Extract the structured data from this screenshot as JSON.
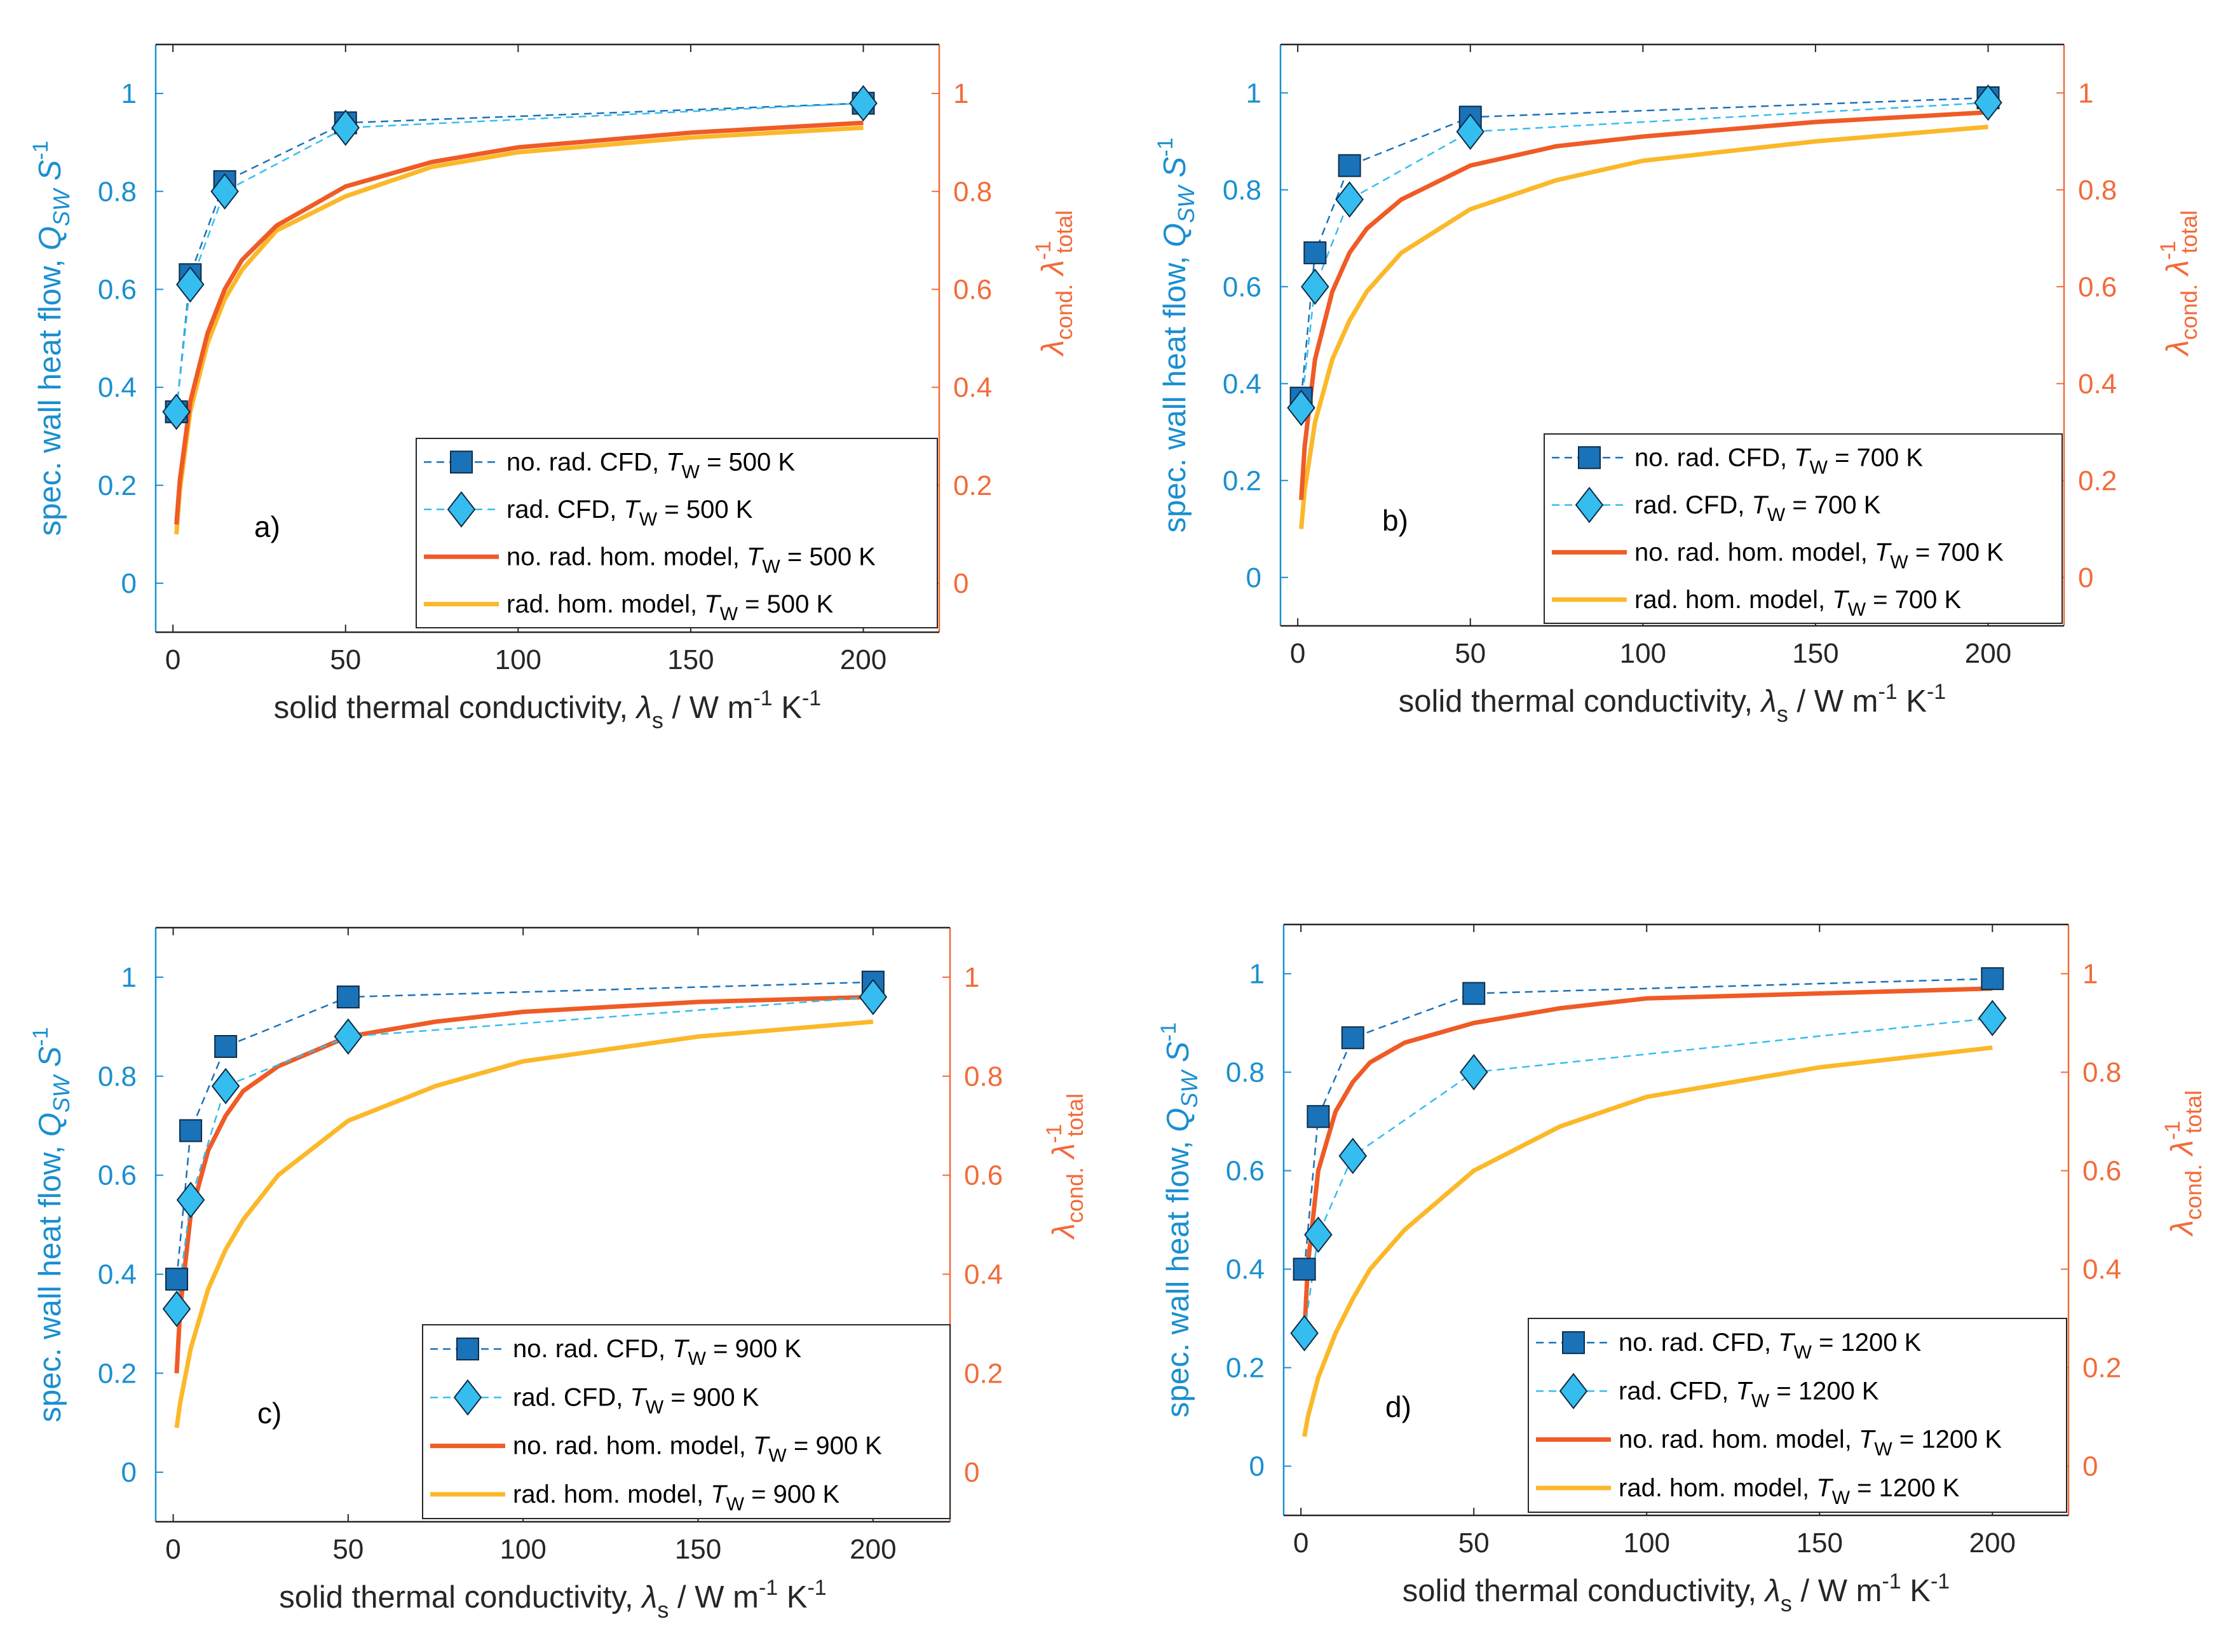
{
  "colors": {
    "left_axis": "#1a8fd0",
    "right_axis": "#f26b3a",
    "cfd_norad": "#1a72b8",
    "cfd_rad": "#35bdf0",
    "model_norad": "#ef5b26",
    "model_rad": "#fbb829"
  },
  "axis_text": {
    "xlabel_main": "solid thermal conductivity, ",
    "xlabel_lambda": "λ",
    "xlabel_sub": "s",
    "xlabel_unit": " / W m",
    "xlabel_exp1": "-1",
    "xlabel_k": " K",
    "xlabel_exp2": "-1",
    "ylabel_main": "spec. wall heat flow, ",
    "ylabel_q": "Q",
    "ylabel_sub": "SW",
    "ylabel_s": " S",
    "ylabel_exp": "-1",
    "y2label_lambda": "λ",
    "y2label_sub1": "cond.",
    "y2label_lambda2": " λ",
    "y2label_exp": "-1",
    "y2label_sub2": "total"
  },
  "chart_data": [
    {
      "type": "line",
      "panel": "a)",
      "wall_temperature": "500 K",
      "x_ticks": [
        "0",
        "50",
        "100",
        "150",
        "200"
      ],
      "xlim": [
        -5,
        222
      ],
      "ylim": [
        -0.1,
        1.1
      ],
      "y_ticks": [
        "0",
        "0.2",
        "0.4",
        "0.6",
        "0.8",
        "1"
      ],
      "y2_ticks": [
        "0",
        "0.2",
        "0.4",
        "0.6",
        "0.8",
        "1"
      ],
      "legend": [
        "no. rad. CFD, T_W = 500 K",
        "rad. CFD, T_W = 500 K",
        "no. rad. hom. model, T_W = 500 K",
        "rad. hom. model, T_W = 500 K"
      ],
      "legend_entries": [
        {
          "pre": "no. rad. CFD, ",
          "T": "T",
          "sub": "W",
          "post": " = 500 K"
        },
        {
          "pre": "rad. CFD, ",
          "T": "T",
          "sub": "W",
          "post": " = 500 K"
        },
        {
          "pre": "no. rad. hom. model, ",
          "T": "T",
          "sub": "W",
          "post": " = 500 K"
        },
        {
          "pre": "rad. hom. model, ",
          "T": "T",
          "sub": "W",
          "post": " = 500 K"
        }
      ],
      "series": [
        {
          "name": "no. rad. CFD",
          "x": [
            1,
            5,
            15,
            50,
            200
          ],
          "y": [
            0.35,
            0.63,
            0.82,
            0.94,
            0.98
          ]
        },
        {
          "name": "rad. CFD",
          "x": [
            1,
            5,
            15,
            50,
            200
          ],
          "y": [
            0.35,
            0.61,
            0.8,
            0.93,
            0.98
          ]
        },
        {
          "name": "no. rad. hom. model",
          "x": [
            1,
            2,
            5,
            10,
            15,
            20,
            30,
            50,
            75,
            100,
            150,
            200
          ],
          "y": [
            0.12,
            0.21,
            0.37,
            0.51,
            0.6,
            0.66,
            0.73,
            0.81,
            0.86,
            0.89,
            0.92,
            0.94
          ]
        },
        {
          "name": "rad. hom. model",
          "x": [
            1,
            2,
            5,
            10,
            15,
            20,
            30,
            50,
            75,
            100,
            150,
            200
          ],
          "y": [
            0.1,
            0.19,
            0.35,
            0.49,
            0.58,
            0.64,
            0.72,
            0.79,
            0.85,
            0.88,
            0.91,
            0.93
          ]
        }
      ]
    },
    {
      "type": "line",
      "panel": "b)",
      "wall_temperature": "700 K",
      "x_ticks": [
        "0",
        "50",
        "100",
        "150",
        "200"
      ],
      "xlim": [
        -5,
        222
      ],
      "ylim": [
        -0.1,
        1.1
      ],
      "y_ticks": [
        "0",
        "0.2",
        "0.4",
        "0.6",
        "0.8",
        "1"
      ],
      "y2_ticks": [
        "0",
        "0.2",
        "0.4",
        "0.6",
        "0.8",
        "1"
      ],
      "legend": [
        "no. rad. CFD, T_W = 700 K",
        "rad. CFD, T_W = 700 K",
        "no. rad. hom. model, T_W = 700 K",
        "rad. hom. model, T_W = 700 K"
      ],
      "legend_entries": [
        {
          "pre": "no. rad. CFD, ",
          "T": "T",
          "sub": "W",
          "post": " = 700 K"
        },
        {
          "pre": "rad. CFD, ",
          "T": "T",
          "sub": "W",
          "post": " = 700 K"
        },
        {
          "pre": "no. rad. hom. model, ",
          "T": "T",
          "sub": "W",
          "post": " = 700 K"
        },
        {
          "pre": "rad. hom. model, ",
          "T": "T",
          "sub": "W",
          "post": " = 700 K"
        }
      ],
      "series": [
        {
          "name": "no. rad. CFD",
          "x": [
            1,
            5,
            15,
            50,
            200
          ],
          "y": [
            0.37,
            0.67,
            0.85,
            0.95,
            0.99
          ]
        },
        {
          "name": "rad. CFD",
          "x": [
            1,
            5,
            15,
            50,
            200
          ],
          "y": [
            0.35,
            0.6,
            0.78,
            0.92,
            0.98
          ]
        },
        {
          "name": "no. rad. hom. model",
          "x": [
            1,
            2,
            5,
            10,
            15,
            20,
            30,
            50,
            75,
            100,
            150,
            200
          ],
          "y": [
            0.16,
            0.27,
            0.45,
            0.59,
            0.67,
            0.72,
            0.78,
            0.85,
            0.89,
            0.91,
            0.94,
            0.96
          ]
        },
        {
          "name": "rad. hom. model",
          "x": [
            1,
            2,
            5,
            10,
            15,
            20,
            30,
            50,
            75,
            100,
            150,
            200
          ],
          "y": [
            0.1,
            0.18,
            0.32,
            0.45,
            0.53,
            0.59,
            0.67,
            0.76,
            0.82,
            0.86,
            0.9,
            0.93
          ]
        }
      ]
    },
    {
      "type": "line",
      "panel": "c)",
      "wall_temperature": "900 K",
      "x_ticks": [
        "0",
        "50",
        "100",
        "150",
        "200"
      ],
      "xlim": [
        -5,
        222
      ],
      "ylim": [
        -0.1,
        1.1
      ],
      "y_ticks": [
        "0",
        "0.2",
        "0.4",
        "0.6",
        "0.8",
        "1"
      ],
      "y2_ticks": [
        "0",
        "0.2",
        "0.4",
        "0.6",
        "0.8",
        "1"
      ],
      "legend": [
        "no. rad. CFD, T_W = 900 K",
        "rad. CFD, T_W = 900 K",
        "no. rad. hom. model, T_W = 900 K",
        "rad. hom. model, T_W = 900 K"
      ],
      "legend_entries": [
        {
          "pre": "no. rad. CFD, ",
          "T": "T",
          "sub": "W",
          "post": " = 900 K"
        },
        {
          "pre": "rad. CFD, ",
          "T": "T",
          "sub": "W",
          "post": " = 900 K"
        },
        {
          "pre": "no. rad. hom. model, ",
          "T": "T",
          "sub": "W",
          "post": " = 900 K"
        },
        {
          "pre": "rad. hom. model, ",
          "T": "T",
          "sub": "W",
          "post": " = 900 K"
        }
      ],
      "series": [
        {
          "name": "no. rad. CFD",
          "x": [
            1,
            5,
            15,
            50,
            200
          ],
          "y": [
            0.39,
            0.69,
            0.86,
            0.96,
            0.99
          ]
        },
        {
          "name": "rad. CFD",
          "x": [
            1,
            5,
            15,
            50,
            200
          ],
          "y": [
            0.33,
            0.55,
            0.78,
            0.88,
            0.96
          ]
        },
        {
          "name": "no. rad. hom. model",
          "x": [
            1,
            2,
            5,
            10,
            15,
            20,
            30,
            50,
            75,
            100,
            150,
            200
          ],
          "y": [
            0.2,
            0.33,
            0.52,
            0.65,
            0.72,
            0.77,
            0.82,
            0.88,
            0.91,
            0.93,
            0.95,
            0.96
          ]
        },
        {
          "name": "rad. hom. model",
          "x": [
            1,
            2,
            5,
            10,
            15,
            20,
            30,
            50,
            75,
            100,
            150,
            200
          ],
          "y": [
            0.09,
            0.14,
            0.25,
            0.37,
            0.45,
            0.51,
            0.6,
            0.71,
            0.78,
            0.83,
            0.88,
            0.91
          ]
        }
      ]
    },
    {
      "type": "line",
      "panel": "d)",
      "wall_temperature": "1200 K",
      "x_ticks": [
        "0",
        "50",
        "100",
        "150",
        "200"
      ],
      "xlim": [
        -5,
        222
      ],
      "ylim": [
        -0.1,
        1.1
      ],
      "y_ticks": [
        "0",
        "0.2",
        "0.4",
        "0.6",
        "0.8",
        "1"
      ],
      "y2_ticks": [
        "0",
        "0.2",
        "0.4",
        "0.6",
        "0.8",
        "1"
      ],
      "legend": [
        "no. rad. CFD, T_W = 1200 K",
        "rad. CFD, T_W = 1200 K",
        "no. rad. hom. model, T_W = 1200 K",
        "rad. hom. model, T_W = 1200 K"
      ],
      "legend_entries": [
        {
          "pre": "no. rad. CFD, ",
          "T": "T",
          "sub": "W",
          "post": " = 1200 K"
        },
        {
          "pre": "rad. CFD, ",
          "T": "T",
          "sub": "W",
          "post": " = 1200 K"
        },
        {
          "pre": "no. rad. hom. model, ",
          "T": "T",
          "sub": "W",
          "post": " = 1200 K"
        },
        {
          "pre": "rad. hom. model, ",
          "T": "T",
          "sub": "W",
          "post": " = 1200 K"
        }
      ],
      "series": [
        {
          "name": "no. rad. CFD",
          "x": [
            1,
            5,
            15,
            50,
            200
          ],
          "y": [
            0.4,
            0.71,
            0.87,
            0.96,
            0.99
          ]
        },
        {
          "name": "rad. CFD",
          "x": [
            1,
            5,
            15,
            50,
            200
          ],
          "y": [
            0.27,
            0.47,
            0.63,
            0.8,
            0.91
          ]
        },
        {
          "name": "no. rad. hom. model",
          "x": [
            1,
            2,
            5,
            10,
            15,
            20,
            30,
            50,
            75,
            100,
            150,
            200
          ],
          "y": [
            0.27,
            0.41,
            0.6,
            0.72,
            0.78,
            0.82,
            0.86,
            0.9,
            0.93,
            0.95,
            0.96,
            0.97
          ]
        },
        {
          "name": "rad. hom. model",
          "x": [
            1,
            2,
            5,
            10,
            15,
            20,
            30,
            50,
            75,
            100,
            150,
            200
          ],
          "y": [
            0.06,
            0.1,
            0.18,
            0.27,
            0.34,
            0.4,
            0.48,
            0.6,
            0.69,
            0.75,
            0.81,
            0.85
          ]
        }
      ]
    }
  ]
}
